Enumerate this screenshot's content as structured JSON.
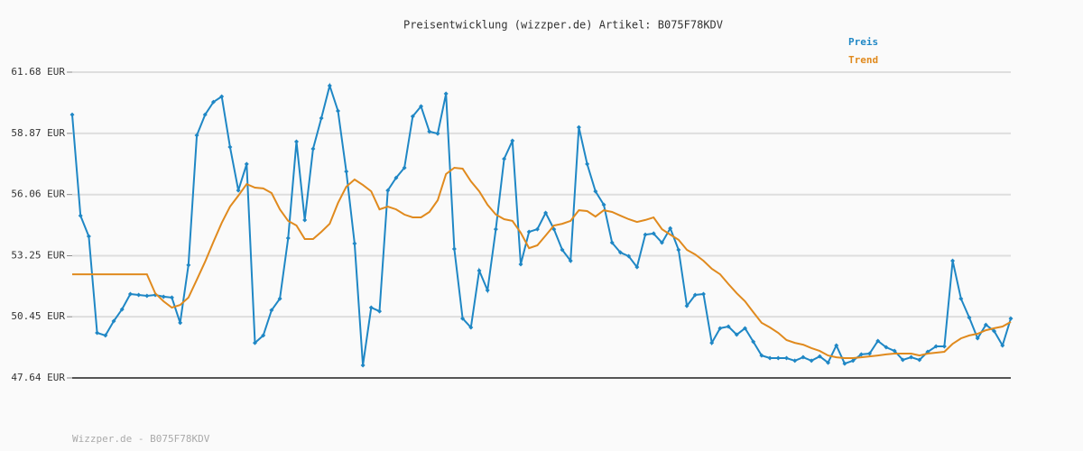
{
  "chart_data": {
    "type": "line",
    "title": "Preisentwicklung (wizzper.de) Artikel: B075F78KDV",
    "source": "Wizzper.de - B075F78KDV",
    "categories": [
      null,
      null,
      null,
      null,
      null,
      null,
      null,
      null,
      null,
      null,
      null,
      null,
      null,
      null,
      null,
      null,
      null,
      null,
      null,
      null,
      null,
      null,
      null,
      null,
      null,
      null,
      null,
      null,
      null,
      null,
      null,
      null,
      null,
      null,
      null,
      null,
      null,
      null,
      null,
      null,
      null,
      null,
      null,
      null,
      null,
      null,
      null,
      null,
      null,
      null,
      null,
      null,
      null,
      null,
      null,
      null,
      null,
      null,
      null,
      null,
      null,
      null,
      null,
      null,
      null,
      null,
      null,
      null,
      null,
      null,
      null,
      null,
      null,
      null,
      null,
      null,
      null,
      null,
      null,
      null,
      null,
      null,
      null,
      null,
      null,
      null,
      null,
      null,
      null,
      null,
      null,
      null,
      null,
      null,
      null,
      null,
      null,
      null,
      null,
      null,
      null,
      null,
      null,
      null,
      null,
      null,
      null,
      null,
      null,
      null,
      null,
      null,
      null,
      null
    ],
    "series": [
      {
        "name": "Preis",
        "color": "#1f87c5",
        "markers": true,
        "values": [
          59.73,
          55.09,
          54.14,
          49.71,
          49.59,
          50.25,
          50.79,
          51.49,
          51.45,
          51.41,
          51.45,
          51.37,
          51.33,
          50.17,
          52.82,
          58.78,
          59.73,
          60.31,
          60.56,
          58.24,
          56.25,
          57.46,
          49.25,
          49.59,
          50.75,
          51.28,
          54.06,
          58.49,
          54.89,
          58.16,
          59.57,
          61.06,
          59.9,
          57.12,
          53.81,
          48.22,
          50.87,
          50.7,
          56.25,
          56.83,
          57.29,
          59.65,
          60.11,
          58.95,
          58.86,
          60.69,
          53.56,
          50.37,
          49.96,
          52.57,
          51.66,
          54.47,
          57.7,
          58.53,
          52.86,
          54.35,
          54.47,
          55.22,
          54.47,
          53.52,
          53.02,
          59.15,
          57.46,
          56.21,
          55.59,
          53.85,
          53.4,
          53.23,
          52.73,
          54.22,
          54.27,
          53.85,
          54.51,
          53.52,
          50.95,
          51.45,
          51.49,
          49.25,
          49.92,
          50.0,
          49.63,
          49.92,
          49.3,
          48.67,
          48.55,
          48.55,
          48.55,
          48.43,
          48.59,
          48.43,
          48.63,
          48.34,
          49.13,
          48.3,
          48.43,
          48.72,
          48.76,
          49.34,
          49.05,
          48.88,
          48.47,
          48.59,
          48.47,
          48.84,
          49.09,
          49.09,
          53.02,
          51.28,
          50.41,
          49.46,
          50.08,
          49.79,
          49.13,
          50.37
        ]
      },
      {
        "name": "Trend",
        "color": "#e08a1e",
        "markers": false,
        "values": [
          52.4,
          52.4,
          52.4,
          52.4,
          52.4,
          52.4,
          52.4,
          52.4,
          52.4,
          52.4,
          51.53,
          51.16,
          50.87,
          50.99,
          51.33,
          52.15,
          52.98,
          53.89,
          54.76,
          55.51,
          56.01,
          56.54,
          56.38,
          56.34,
          56.13,
          55.38,
          54.85,
          54.64,
          54.02,
          54.02,
          54.35,
          54.72,
          55.67,
          56.42,
          56.75,
          56.5,
          56.21,
          55.38,
          55.51,
          55.38,
          55.14,
          55.01,
          55.01,
          55.26,
          55.8,
          57.0,
          57.29,
          57.25,
          56.67,
          56.21,
          55.59,
          55.14,
          54.93,
          54.85,
          54.31,
          53.6,
          53.73,
          54.18,
          54.64,
          54.72,
          54.85,
          55.34,
          55.3,
          55.05,
          55.34,
          55.26,
          55.09,
          54.93,
          54.8,
          54.89,
          55.01,
          54.47,
          54.22,
          53.98,
          53.52,
          53.31,
          53.02,
          52.65,
          52.4,
          51.95,
          51.53,
          51.16,
          50.66,
          50.17,
          49.96,
          49.71,
          49.38,
          49.25,
          49.17,
          49.01,
          48.88,
          48.67,
          48.59,
          48.55,
          48.55,
          48.59,
          48.63,
          48.67,
          48.72,
          48.76,
          48.76,
          48.76,
          48.67,
          48.76,
          48.8,
          48.84,
          49.21,
          49.46,
          49.59,
          49.67,
          49.83,
          49.92,
          50.0,
          50.21
        ]
      }
    ],
    "ylim": [
      47.64,
      61.68
    ],
    "yticks": [
      {
        "value": 47.64,
        "label": "47.64 EUR"
      },
      {
        "value": 50.45,
        "label": "50.45 EUR"
      },
      {
        "value": 53.25,
        "label": "53.25 EUR"
      },
      {
        "value": 56.06,
        "label": "56.06 EUR"
      },
      {
        "value": 58.87,
        "label": "58.87 EUR"
      },
      {
        "value": 61.68,
        "label": "61.68 EUR"
      }
    ],
    "grid": true
  }
}
